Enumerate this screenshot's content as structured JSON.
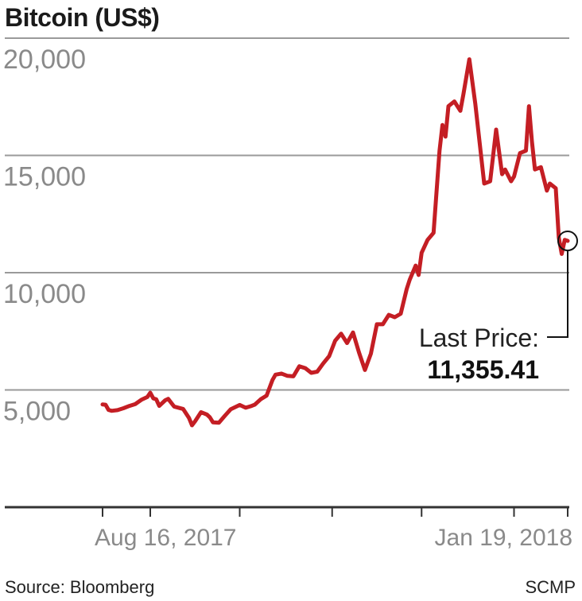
{
  "header": {
    "title": "Bitcoin (US$)"
  },
  "footer": {
    "source": "Source: Bloomberg",
    "credit": "SCMP"
  },
  "colors": {
    "line": "#c41e24",
    "grid": "#9a9a9a",
    "axis": "#333333",
    "tick_text": "#8a8a8a"
  },
  "chart_data": {
    "type": "line",
    "title": "Bitcoin (US$)",
    "xlabel": "",
    "ylabel": "",
    "ylim": [
      0,
      20000
    ],
    "y_ticks": [
      {
        "value": 5000,
        "label": "5,000"
      },
      {
        "value": 10000,
        "label": "10,000"
      },
      {
        "value": 15000,
        "label": "15,000"
      },
      {
        "value": 20000,
        "label": "20,000"
      }
    ],
    "x_range": [
      "2017-08-16",
      "2018-01-19"
    ],
    "x_ticks": [
      {
        "date": "2017-08-16",
        "label": "Aug 16, 2017"
      },
      {
        "date": "2017-09-01",
        "label": ""
      },
      {
        "date": "2017-10-01",
        "label": ""
      },
      {
        "date": "2017-11-01",
        "label": ""
      },
      {
        "date": "2017-12-01",
        "label": ""
      },
      {
        "date": "2018-01-01",
        "label": ""
      },
      {
        "date": "2018-01-19",
        "label": "Jan 19, 2018"
      }
    ],
    "grid": true,
    "series": [
      {
        "name": "",
        "points": [
          [
            "2017-08-16",
            4380
          ],
          [
            "2017-08-17",
            4370
          ],
          [
            "2017-08-18",
            4150
          ],
          [
            "2017-08-19",
            4110
          ],
          [
            "2017-08-21",
            4140
          ],
          [
            "2017-08-23",
            4220
          ],
          [
            "2017-08-25",
            4320
          ],
          [
            "2017-08-27",
            4400
          ],
          [
            "2017-08-29",
            4580
          ],
          [
            "2017-08-31",
            4700
          ],
          [
            "2017-09-01",
            4880
          ],
          [
            "2017-09-02",
            4640
          ],
          [
            "2017-09-03",
            4600
          ],
          [
            "2017-09-04",
            4320
          ],
          [
            "2017-09-06",
            4560
          ],
          [
            "2017-09-07",
            4620
          ],
          [
            "2017-09-09",
            4290
          ],
          [
            "2017-09-12",
            4190
          ],
          [
            "2017-09-14",
            3800
          ],
          [
            "2017-09-15",
            3490
          ],
          [
            "2017-09-16",
            3660
          ],
          [
            "2017-09-18",
            4050
          ],
          [
            "2017-09-20",
            3950
          ],
          [
            "2017-09-21",
            3830
          ],
          [
            "2017-09-22",
            3620
          ],
          [
            "2017-09-24",
            3600
          ],
          [
            "2017-09-26",
            3900
          ],
          [
            "2017-09-28",
            4180
          ],
          [
            "2017-10-01",
            4360
          ],
          [
            "2017-10-03",
            4240
          ],
          [
            "2017-10-05",
            4320
          ],
          [
            "2017-10-06",
            4370
          ],
          [
            "2017-10-08",
            4600
          ],
          [
            "2017-10-10",
            4760
          ],
          [
            "2017-10-12",
            5430
          ],
          [
            "2017-10-13",
            5650
          ],
          [
            "2017-10-15",
            5700
          ],
          [
            "2017-10-17",
            5600
          ],
          [
            "2017-10-19",
            5580
          ],
          [
            "2017-10-21",
            6010
          ],
          [
            "2017-10-23",
            5930
          ],
          [
            "2017-10-25",
            5730
          ],
          [
            "2017-10-27",
            5780
          ],
          [
            "2017-10-29",
            6130
          ],
          [
            "2017-10-31",
            6440
          ],
          [
            "2017-11-02",
            7100
          ],
          [
            "2017-11-04",
            7400
          ],
          [
            "2017-11-06",
            7000
          ],
          [
            "2017-11-08",
            7450
          ],
          [
            "2017-11-10",
            6600
          ],
          [
            "2017-11-12",
            5850
          ],
          [
            "2017-11-14",
            6550
          ],
          [
            "2017-11-16",
            7800
          ],
          [
            "2017-11-18",
            7800
          ],
          [
            "2017-11-20",
            8200
          ],
          [
            "2017-11-22",
            8100
          ],
          [
            "2017-11-24",
            8250
          ],
          [
            "2017-11-26",
            9300
          ],
          [
            "2017-11-27",
            9700
          ],
          [
            "2017-11-29",
            10300
          ],
          [
            "2017-11-30",
            9900
          ],
          [
            "2017-12-01",
            10850
          ],
          [
            "2017-12-03",
            11400
          ],
          [
            "2017-12-05",
            11700
          ],
          [
            "2017-12-07",
            15200
          ],
          [
            "2017-12-08",
            16300
          ],
          [
            "2017-12-09",
            15800
          ],
          [
            "2017-12-10",
            17100
          ],
          [
            "2017-12-12",
            17300
          ],
          [
            "2017-12-14",
            16900
          ],
          [
            "2017-12-15",
            17600
          ],
          [
            "2017-12-17",
            19100
          ],
          [
            "2017-12-19",
            17200
          ],
          [
            "2017-12-22",
            13800
          ],
          [
            "2017-12-24",
            13900
          ],
          [
            "2017-12-26",
            16100
          ],
          [
            "2017-12-28",
            14200
          ],
          [
            "2017-12-29",
            14400
          ],
          [
            "2017-12-31",
            13900
          ],
          [
            "2018-01-01",
            14100
          ],
          [
            "2018-01-03",
            15100
          ],
          [
            "2018-01-05",
            15200
          ],
          [
            "2018-01-06",
            17100
          ],
          [
            "2018-01-07",
            15600
          ],
          [
            "2018-01-08",
            14400
          ],
          [
            "2018-01-10",
            14500
          ],
          [
            "2018-01-12",
            13500
          ],
          [
            "2018-01-13",
            13800
          ],
          [
            "2018-01-15",
            13600
          ],
          [
            "2018-01-16",
            11500
          ],
          [
            "2018-01-17",
            10800
          ],
          [
            "2018-01-18",
            11400
          ],
          [
            "2018-01-19",
            11355.41
          ]
        ]
      }
    ],
    "annotations": [
      {
        "date": "2018-01-19",
        "value": 11355.41,
        "label": "Last Price:",
        "value_label": "11,355.41"
      }
    ]
  }
}
